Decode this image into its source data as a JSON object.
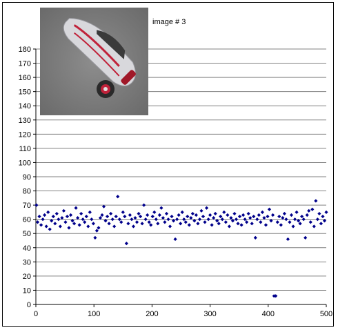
{
  "caption": "image # 3",
  "thumbnail": {
    "icon": "car-photo-icon",
    "colors": {
      "background": "#808080",
      "car": "#d8d8dc",
      "trim": "#c0223a"
    }
  },
  "chart_data": {
    "type": "scatter",
    "title": "",
    "xlabel": "",
    "ylabel": "",
    "xlim": [
      0,
      500
    ],
    "ylim": [
      0,
      180
    ],
    "xticks": [
      0,
      100,
      200,
      300,
      400,
      500
    ],
    "yticks": [
      0,
      10,
      20,
      30,
      40,
      50,
      60,
      70,
      80,
      90,
      100,
      110,
      120,
      130,
      140,
      150,
      160,
      170,
      180
    ],
    "marker_color": "#00008b",
    "marker": "diamond",
    "grid": "horizontal",
    "legend": "none",
    "points": [
      [
        1,
        70
      ],
      [
        3,
        58
      ],
      [
        6,
        62
      ],
      [
        9,
        56
      ],
      [
        12,
        60
      ],
      [
        15,
        63
      ],
      [
        18,
        55
      ],
      [
        21,
        65
      ],
      [
        24,
        53
      ],
      [
        27,
        59
      ],
      [
        30,
        62
      ],
      [
        33,
        57
      ],
      [
        36,
        64
      ],
      [
        39,
        60
      ],
      [
        42,
        55
      ],
      [
        45,
        61
      ],
      [
        48,
        66
      ],
      [
        51,
        58
      ],
      [
        54,
        62
      ],
      [
        57,
        54
      ],
      [
        60,
        63
      ],
      [
        63,
        59
      ],
      [
        66,
        57
      ],
      [
        69,
        68
      ],
      [
        72,
        61
      ],
      [
        75,
        56
      ],
      [
        78,
        64
      ],
      [
        81,
        60
      ],
      [
        84,
        58
      ],
      [
        87,
        62
      ],
      [
        90,
        55
      ],
      [
        93,
        65
      ],
      [
        96,
        60
      ],
      [
        99,
        57
      ],
      [
        102,
        47
      ],
      [
        105,
        52
      ],
      [
        108,
        54
      ],
      [
        111,
        61
      ],
      [
        114,
        63
      ],
      [
        117,
        69
      ],
      [
        120,
        59
      ],
      [
        123,
        62
      ],
      [
        126,
        57
      ],
      [
        129,
        64
      ],
      [
        132,
        60
      ],
      [
        135,
        55
      ],
      [
        138,
        62
      ],
      [
        141,
        76
      ],
      [
        144,
        60
      ],
      [
        147,
        58
      ],
      [
        150,
        65
      ],
      [
        153,
        62
      ],
      [
        156,
        43
      ],
      [
        159,
        57
      ],
      [
        162,
        63
      ],
      [
        165,
        60
      ],
      [
        168,
        55
      ],
      [
        171,
        61
      ],
      [
        174,
        58
      ],
      [
        177,
        64
      ],
      [
        180,
        62
      ],
      [
        183,
        57
      ],
      [
        186,
        70
      ],
      [
        189,
        60
      ],
      [
        192,
        63
      ],
      [
        195,
        58
      ],
      [
        198,
        56
      ],
      [
        201,
        62
      ],
      [
        204,
        65
      ],
      [
        207,
        60
      ],
      [
        210,
        57
      ],
      [
        213,
        63
      ],
      [
        216,
        68
      ],
      [
        219,
        61
      ],
      [
        222,
        58
      ],
      [
        225,
        64
      ],
      [
        228,
        60
      ],
      [
        231,
        55
      ],
      [
        234,
        62
      ],
      [
        237,
        59
      ],
      [
        240,
        46
      ],
      [
        243,
        60
      ],
      [
        246,
        63
      ],
      [
        249,
        57
      ],
      [
        252,
        65
      ],
      [
        255,
        60
      ],
      [
        258,
        58
      ],
      [
        261,
        62
      ],
      [
        264,
        56
      ],
      [
        267,
        61
      ],
      [
        270,
        64
      ],
      [
        273,
        59
      ],
      [
        276,
        63
      ],
      [
        279,
        57
      ],
      [
        282,
        60
      ],
      [
        285,
        66
      ],
      [
        288,
        62
      ],
      [
        291,
        58
      ],
      [
        294,
        68
      ],
      [
        297,
        60
      ],
      [
        300,
        63
      ],
      [
        303,
        56
      ],
      [
        306,
        61
      ],
      [
        309,
        64
      ],
      [
        312,
        59
      ],
      [
        315,
        57
      ],
      [
        318,
        62
      ],
      [
        321,
        60
      ],
      [
        324,
        65
      ],
      [
        327,
        58
      ],
      [
        330,
        63
      ],
      [
        333,
        55
      ],
      [
        336,
        61
      ],
      [
        339,
        59
      ],
      [
        342,
        64
      ],
      [
        345,
        60
      ],
      [
        348,
        57
      ],
      [
        351,
        62
      ],
      [
        354,
        56
      ],
      [
        357,
        63
      ],
      [
        360,
        60
      ],
      [
        363,
        58
      ],
      [
        366,
        64
      ],
      [
        369,
        61
      ],
      [
        372,
        57
      ],
      [
        375,
        62
      ],
      [
        378,
        47
      ],
      [
        381,
        60
      ],
      [
        384,
        63
      ],
      [
        387,
        58
      ],
      [
        390,
        65
      ],
      [
        393,
        61
      ],
      [
        396,
        56
      ],
      [
        399,
        62
      ],
      [
        402,
        67
      ],
      [
        405,
        59
      ],
      [
        408,
        63
      ],
      [
        410,
        6
      ],
      [
        413,
        6
      ],
      [
        416,
        58
      ],
      [
        419,
        62
      ],
      [
        422,
        56
      ],
      [
        425,
        61
      ],
      [
        428,
        64
      ],
      [
        431,
        60
      ],
      [
        434,
        46
      ],
      [
        437,
        58
      ],
      [
        440,
        63
      ],
      [
        443,
        55
      ],
      [
        446,
        60
      ],
      [
        449,
        65
      ],
      [
        452,
        59
      ],
      [
        455,
        57
      ],
      [
        458,
        62
      ],
      [
        461,
        60
      ],
      [
        464,
        47
      ],
      [
        467,
        63
      ],
      [
        470,
        66
      ],
      [
        473,
        58
      ],
      [
        476,
        67
      ],
      [
        479,
        55
      ],
      [
        482,
        73
      ],
      [
        485,
        60
      ],
      [
        488,
        64
      ],
      [
        491,
        57
      ],
      [
        494,
        62
      ],
      [
        497,
        59
      ],
      [
        500,
        65
      ]
    ]
  }
}
